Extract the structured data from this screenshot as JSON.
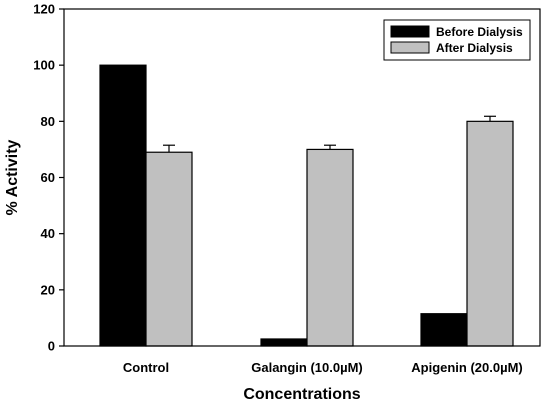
{
  "chart_data": {
    "type": "bar",
    "title": "",
    "xlabel": "Concentrations",
    "ylabel": "% Activity",
    "categories": [
      "Control",
      "Galangin (10.0µM)",
      "Apigenin (20.0µM)"
    ],
    "series": [
      {
        "name": "Before Dialysis",
        "color": "#000000",
        "values": [
          100,
          2.5,
          11.5
        ],
        "errors": [
          0,
          0,
          0
        ]
      },
      {
        "name": "After Dialysis",
        "color": "#c0c0c0",
        "values": [
          69,
          70,
          80
        ],
        "errors": [
          2.5,
          1.5,
          1.8
        ]
      }
    ],
    "ylim": [
      0,
      120
    ],
    "yticks": [
      0,
      20,
      40,
      60,
      80,
      100,
      120
    ],
    "ytick_labels": [
      "0",
      "20",
      "40",
      "60",
      "80",
      "100",
      "120"
    ],
    "legend_position": "top-right",
    "grid": false
  }
}
